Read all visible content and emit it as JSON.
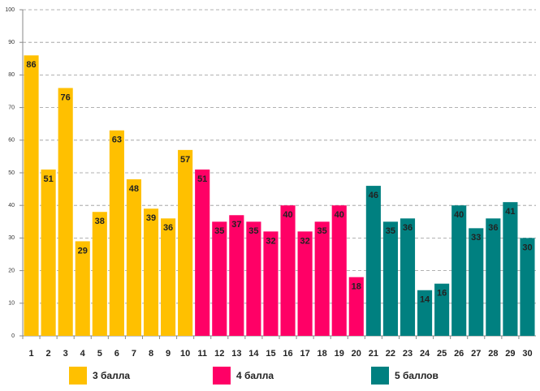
{
  "chart_data": {
    "type": "bar",
    "categories": [
      "1",
      "2",
      "3",
      "4",
      "5",
      "6",
      "7",
      "8",
      "9",
      "10",
      "11",
      "12",
      "13",
      "14",
      "15",
      "16",
      "17",
      "18",
      "19",
      "20",
      "21",
      "22",
      "23",
      "24",
      "25",
      "26",
      "27",
      "28",
      "29",
      "30"
    ],
    "series": [
      {
        "name": "3 балла",
        "color": "#FFC000",
        "values": [
          86,
          51,
          76,
          29,
          38,
          63,
          48,
          39,
          36,
          57,
          null,
          null,
          null,
          null,
          null,
          null,
          null,
          null,
          null,
          null,
          null,
          null,
          null,
          null,
          null,
          null,
          null,
          null,
          null,
          null
        ]
      },
      {
        "name": "4 балла",
        "color": "#FF0066",
        "values": [
          null,
          null,
          null,
          null,
          null,
          null,
          null,
          null,
          null,
          null,
          51,
          35,
          37,
          35,
          32,
          40,
          32,
          35,
          40,
          18,
          null,
          null,
          null,
          null,
          null,
          null,
          null,
          null,
          null,
          null
        ]
      },
      {
        "name": "5 баллов",
        "color": "#008080",
        "values": [
          null,
          null,
          null,
          null,
          null,
          null,
          null,
          null,
          null,
          null,
          null,
          null,
          null,
          null,
          null,
          null,
          null,
          null,
          null,
          null,
          46,
          35,
          36,
          14,
          16,
          40,
          33,
          36,
          41,
          30
        ]
      }
    ],
    "ylim": [
      0,
      100
    ],
    "yticks": [
      0,
      10,
      20,
      30,
      40,
      50,
      60,
      70,
      80,
      90,
      100
    ],
    "grid": true,
    "legend": "bottom"
  }
}
